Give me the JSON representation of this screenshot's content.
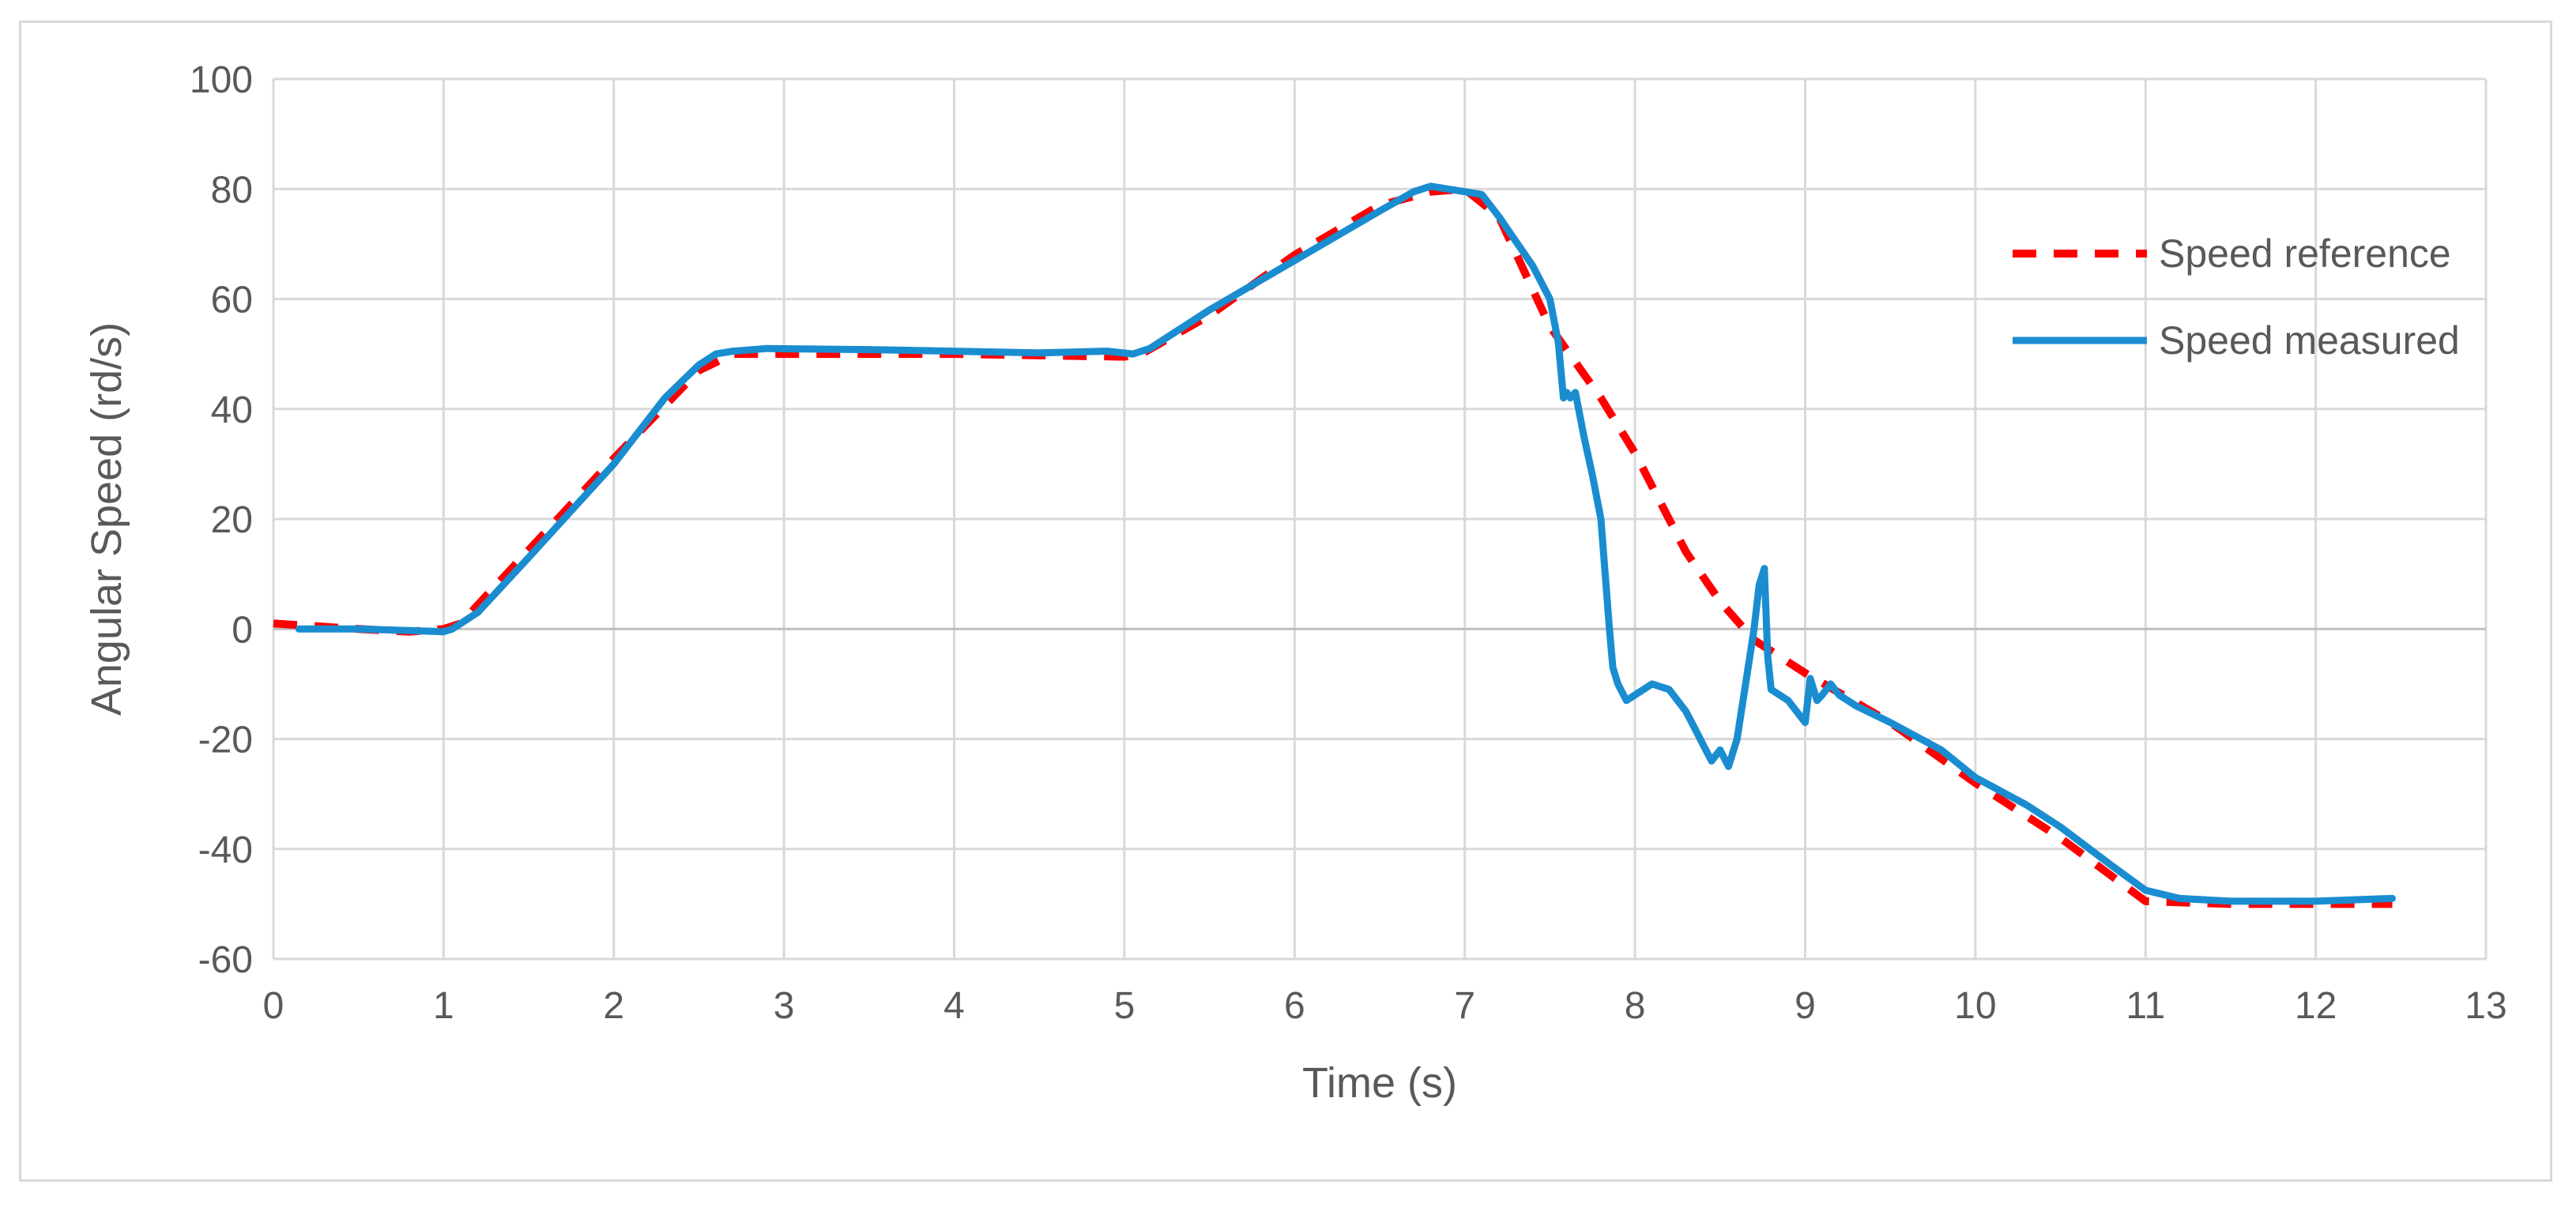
{
  "chart_data": {
    "type": "line",
    "title": "",
    "xlabel": "Time (s)",
    "ylabel": "Angular Speed (rd/s)",
    "xlim": [
      0,
      13
    ],
    "ylim": [
      -60,
      100
    ],
    "xticks": [
      0,
      1,
      2,
      3,
      4,
      5,
      6,
      7,
      8,
      9,
      10,
      11,
      12,
      13
    ],
    "yticks": [
      100,
      80,
      60,
      40,
      20,
      0,
      -20,
      -40,
      -60
    ],
    "grid": true,
    "legend_position": "right",
    "series": [
      {
        "name": "Speed reference",
        "style": "dashed",
        "color": "#ff0000",
        "x": [
          0,
          0.5,
          0.8,
          1.0,
          1.1,
          2.0,
          2.5,
          2.7,
          3.0,
          4.0,
          5.0,
          5.1,
          5.5,
          6.0,
          6.5,
          6.8,
          7.0,
          7.2,
          7.5,
          7.8,
          8.0,
          8.3,
          8.5,
          8.7,
          9.0,
          9.5,
          10.0,
          10.5,
          11.0,
          11.5,
          12.0,
          12.45
        ],
        "y": [
          1,
          0,
          -0.5,
          0,
          1,
          31,
          47,
          50,
          50,
          50,
          49.5,
          50,
          57,
          68,
          77,
          79.5,
          80,
          75,
          55,
          42,
          32,
          14,
          5,
          -2,
          -8,
          -17,
          -28,
          -38,
          -49.5,
          -50,
          -50,
          -50
        ]
      },
      {
        "name": "Speed measured",
        "style": "solid",
        "color": "#1a8dd0",
        "x": [
          0.15,
          0.5,
          0.8,
          1.0,
          1.05,
          1.2,
          1.5,
          2.0,
          2.3,
          2.5,
          2.6,
          2.7,
          2.9,
          3.5,
          4.0,
          4.5,
          4.9,
          5.05,
          5.15,
          5.5,
          6.0,
          6.5,
          6.7,
          6.8,
          7.0,
          7.1,
          7.2,
          7.4,
          7.5,
          7.55,
          7.58,
          7.6,
          7.62,
          7.65,
          7.7,
          7.75,
          7.8,
          7.82,
          7.85,
          7.87,
          7.9,
          7.95,
          8.0,
          8.1,
          8.2,
          8.3,
          8.45,
          8.5,
          8.55,
          8.6,
          8.65,
          8.7,
          8.73,
          8.76,
          8.78,
          8.8,
          8.9,
          8.95,
          9.0,
          9.03,
          9.07,
          9.1,
          9.15,
          9.2,
          9.3,
          9.5,
          9.8,
          10.0,
          10.3,
          10.5,
          10.8,
          11.0,
          11.2,
          11.5,
          12.0,
          12.45
        ],
        "y": [
          0,
          0,
          -0.3,
          -0.5,
          0,
          3,
          13,
          30,
          42,
          48,
          50,
          50.5,
          51,
          50.8,
          50.5,
          50.2,
          50.5,
          50,
          51,
          58,
          67,
          76,
          79.5,
          80.5,
          79.5,
          79,
          75,
          66,
          60,
          52,
          42,
          43,
          42,
          43,
          35,
          28,
          20,
          12,
          0,
          -7,
          -10,
          -13,
          -12,
          -10,
          -11,
          -15,
          -24,
          -22,
          -25,
          -20,
          -10,
          0,
          8,
          11,
          -5,
          -11,
          -13,
          -15,
          -17,
          -9,
          -13,
          -12,
          -10,
          -12,
          -14,
          -17,
          -22,
          -27,
          -32,
          -36,
          -43,
          -47.5,
          -49,
          -49.5,
          -49.5,
          -49
        ]
      }
    ]
  }
}
